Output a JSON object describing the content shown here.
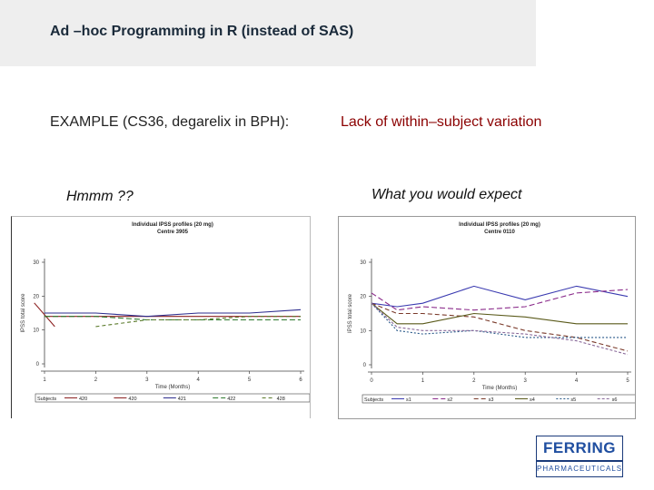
{
  "slide": {
    "title": "Ad –hoc Programming in R (instead of SAS)",
    "subtitle": "EXAMPLE (CS36, degarelix in BPH):",
    "subtitle_right": "Lack of within–subject  variation",
    "caption_left": "Hmmm ??",
    "caption_right": "What you would expect"
  },
  "logo": {
    "line1": "FERRING",
    "line2": "PHARMACEUTICALS"
  },
  "colors": {
    "title_bar": "#eeeeee",
    "accent_red": "#8b0000",
    "logo_blue": "#1f4ea0"
  },
  "chart_data": [
    {
      "type": "line",
      "title": "Individual IPSS profiles (20 mg)",
      "subtitle": "Centre 3905",
      "xlabel": "Time (Months)",
      "ylabel": "IPSS total score",
      "x": [
        1,
        2,
        3,
        4,
        5,
        6
      ],
      "xlim": [
        1,
        6
      ],
      "ylim": [
        0,
        30
      ],
      "yticks": [
        0,
        10,
        20,
        30
      ],
      "grid": false,
      "legend_position": "bottom",
      "legend_label": "Subjects",
      "series": [
        {
          "name": "420",
          "color": "#8b2020",
          "dash": "",
          "points": [
            [
              0.8,
              18
            ],
            [
              1.2,
              11
            ]
          ]
        },
        {
          "name": "420",
          "color": "#8b2020",
          "dash": "",
          "points": [
            [
              1,
              14
            ],
            [
              2,
              14
            ],
            [
              3,
              14
            ],
            [
              4,
              14
            ],
            [
              5,
              14
            ],
            [
              6,
              14
            ]
          ]
        },
        {
          "name": "421",
          "color": "#2e2e8e",
          "dash": "",
          "points": [
            [
              1,
              15
            ],
            [
              2,
              15
            ],
            [
              3,
              14
            ],
            [
              4,
              15
            ],
            [
              5,
              15
            ],
            [
              6,
              16
            ]
          ]
        },
        {
          "name": "422",
          "color": "#2e7a2e",
          "dash": "6,3",
          "points": [
            [
              1,
              14
            ],
            [
              2,
              14
            ],
            [
              3,
              13
            ],
            [
              4,
              13
            ],
            [
              5,
              13
            ],
            [
              6,
              13
            ]
          ]
        },
        {
          "name": "428",
          "color": "#5a7a2a",
          "dash": "4,3",
          "points": [
            [
              2,
              11
            ],
            [
              3,
              13
            ],
            [
              4,
              13
            ],
            [
              5,
              14
            ],
            [
              6,
              14
            ]
          ]
        }
      ]
    },
    {
      "type": "line",
      "title": "Individual IPSS profiles (20 mg)",
      "subtitle": "Centre 0110",
      "xlabel": "Time (Months)",
      "ylabel": "IPSS total score",
      "x": [
        0,
        1,
        2,
        3,
        4,
        5
      ],
      "xlim": [
        0,
        5
      ],
      "ylim": [
        0,
        30
      ],
      "yticks": [
        0,
        10,
        20,
        30
      ],
      "grid": false,
      "legend_position": "bottom",
      "legend_label": "Subjects",
      "series": [
        {
          "name": "s1",
          "color": "#3a3ab0",
          "dash": "",
          "points": [
            [
              0,
              18
            ],
            [
              0.5,
              17
            ],
            [
              1,
              18
            ],
            [
              2,
              23
            ],
            [
              3,
              19
            ],
            [
              4,
              23
            ],
            [
              5,
              20
            ]
          ]
        },
        {
          "name": "s2",
          "color": "#8a2a8a",
          "dash": "6,3",
          "points": [
            [
              0,
              21
            ],
            [
              0.5,
              16
            ],
            [
              1,
              17
            ],
            [
              2,
              16
            ],
            [
              3,
              17
            ],
            [
              4,
              21
            ],
            [
              5,
              22
            ]
          ]
        },
        {
          "name": "s3",
          "color": "#7a3a2a",
          "dash": "5,3",
          "points": [
            [
              0,
              18
            ],
            [
              0.5,
              15
            ],
            [
              1,
              15
            ],
            [
              2,
              14
            ],
            [
              3,
              10
            ],
            [
              4,
              8
            ],
            [
              5,
              4
            ]
          ]
        },
        {
          "name": "s4",
          "color": "#5a5a1a",
          "dash": "",
          "points": [
            [
              0,
              18
            ],
            [
              0.5,
              12
            ],
            [
              1,
              12
            ],
            [
              2,
              15
            ],
            [
              3,
              14
            ],
            [
              4,
              12
            ],
            [
              5,
              12
            ]
          ]
        },
        {
          "name": "s5",
          "color": "#2a5a8a",
          "dash": "2,2",
          "points": [
            [
              0,
              18
            ],
            [
              0.5,
              10
            ],
            [
              1,
              9
            ],
            [
              2,
              10
            ],
            [
              3,
              8
            ],
            [
              4,
              8
            ],
            [
              5,
              8
            ]
          ]
        },
        {
          "name": "s6",
          "color": "#8a6a9a",
          "dash": "3,2",
          "points": [
            [
              0,
              18
            ],
            [
              0.5,
              11
            ],
            [
              1,
              10
            ],
            [
              2,
              10
            ],
            [
              3,
              9
            ],
            [
              4,
              7
            ],
            [
              5,
              3
            ]
          ]
        }
      ]
    }
  ]
}
